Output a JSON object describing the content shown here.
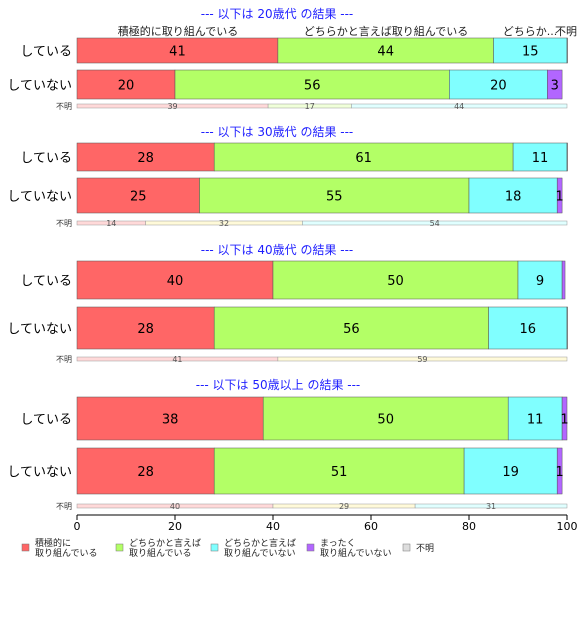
{
  "chart_data": {
    "type": "bar",
    "orientation": "horizontal",
    "stacked": true,
    "xlim": [
      0,
      100
    ],
    "xticks": [
      0,
      20,
      40,
      60,
      80,
      100
    ],
    "grid": false,
    "legend_position": "bottom",
    "top_column_labels": [
      "積極的に取り組んでいる",
      "どちらかと言えば取り組んでいる",
      "どちらか...",
      "不明"
    ],
    "categories": [
      {
        "key": "active",
        "label": "積極的に\n取り組んでいる",
        "color": "#ff6666",
        "light": "#ffd9d9"
      },
      {
        "key": "somewhat_active",
        "label": "どちらかと言えば\n取り組んでいる",
        "color": "#b3ff66",
        "light": "#f0ffd9"
      },
      {
        "key": "somewhat_not",
        "label": "どちらかと言えば\n取り組んでいない",
        "color": "#80ffff",
        "light": "#e0ffff"
      },
      {
        "key": "not_at_all",
        "label": "まったく\n取り組んでいない",
        "color": "#b266ff",
        "light": "#ecd9ff"
      },
      {
        "key": "unknown",
        "label": "不明",
        "color": "#dddddd",
        "light": "#f3f3f3"
      }
    ],
    "unknown_row_label": "不明",
    "groups": [
      {
        "title": "--- 以下は 20歳代 の結果 ---",
        "rows": [
          {
            "label": "している",
            "values": [
              41,
              44,
              15,
              0.6
            ]
          },
          {
            "label": "していない",
            "values": [
              20,
              56,
              20,
              3
            ]
          }
        ],
        "unknown": {
          "values": [
            39,
            17,
            44
          ],
          "colors": [
            "#ffd9d9",
            "#f0ffd9",
            "#e0ffff"
          ]
        }
      },
      {
        "title": "--- 以下は 30歳代 の結果 ---",
        "rows": [
          {
            "label": "している",
            "values": [
              28,
              61,
              11,
              0.2
            ]
          },
          {
            "label": "していない",
            "values": [
              25,
              55,
              18,
              1
            ]
          }
        ],
        "unknown": {
          "values": [
            14,
            32,
            54
          ],
          "colors": [
            "#ffd9d9",
            "#fffad9",
            "#e0ffff"
          ]
        }
      },
      {
        "title": "--- 以下は 40歳代 の結果 ---",
        "rows": [
          {
            "label": "している",
            "values": [
              40,
              50,
              9,
              0.6
            ]
          },
          {
            "label": "していない",
            "values": [
              28,
              56,
              16,
              0.4
            ]
          }
        ],
        "unknown": {
          "values": [
            41,
            59
          ],
          "colors": [
            "#ffd9d9",
            "#fffad9"
          ]
        }
      },
      {
        "title": "--- 以下は 50歳以上 の結果 ---",
        "rows": [
          {
            "label": "している",
            "values": [
              38,
              50,
              11,
              1
            ]
          },
          {
            "label": "していない",
            "values": [
              28,
              51,
              19,
              1
            ]
          }
        ],
        "unknown": {
          "values": [
            40,
            29,
            31
          ],
          "colors": [
            "#ffd9d9",
            "#fffad9",
            "#e0ffff"
          ]
        }
      }
    ]
  }
}
